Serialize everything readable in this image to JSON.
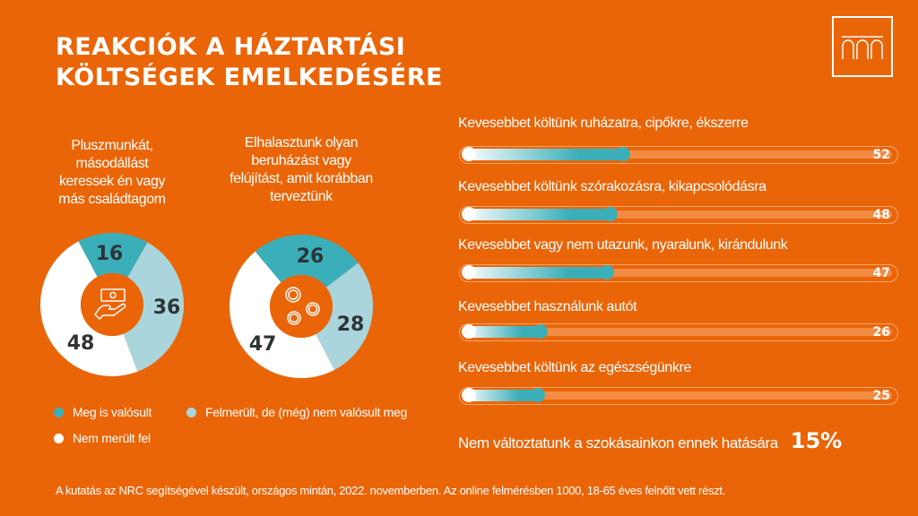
{
  "title_lines": [
    "REAKCIÓK A HÁZTARTÁSI",
    "KÖLTSÉGEK EMELKEDÉSÉRE"
  ],
  "colors": {
    "background": "#EA6508",
    "teal": "#3AAFBA",
    "light_blue": "#AAD5DC",
    "white": "#FFFFFF"
  },
  "chart_data": [
    {
      "type": "pie",
      "title_lines": [
        "Pluszmunkát,",
        "másodállást",
        "keressek én vagy",
        "más családtagom"
      ],
      "icon": "hand-money-icon",
      "categories": [
        "Meg is valósult",
        "Felmerült, de (még) nem valósult meg",
        "Nem merült fel"
      ],
      "values": [
        16,
        36,
        48
      ]
    },
    {
      "type": "pie",
      "title_lines": [
        "Elhalasztunk olyan",
        "beruházást vagy",
        "felújítást, amit korábban",
        "terveztünk"
      ],
      "icon": "coins-icon",
      "categories": [
        "Meg is valósult",
        "Felmerült, de (még) nem valósult meg",
        "Nem merült fel"
      ],
      "values": [
        26,
        28,
        47
      ]
    },
    {
      "type": "bar",
      "categories": [
        "Kevesebbet költünk ruházatra, cipőkre, ékszerre",
        "Kevesebbet költünk szórakozásra, kikapcsolódásra",
        "Kevesebbet vagy nem utazunk, nyaralunk, kirándulunk",
        "Kevesebbet használunk autót",
        "Kevesebbet költünk az egészségünkre"
      ],
      "values": [
        52,
        48,
        47,
        26,
        25
      ]
    }
  ],
  "legend": [
    {
      "label": "Meg is valósult",
      "color": "#3AAFBA"
    },
    {
      "label": "Felmerült, de (még) nem valósult meg",
      "color": "#AAD5DC"
    },
    {
      "label": "Nem merült fel",
      "color": "#FFFFFF"
    }
  ],
  "no_change": {
    "label": "Nem változtatunk a szokásainkon ennek hatására",
    "value": "15%"
  },
  "footnote": "A kutatás az NRC segítségével készült, országos mintán, 2022. novemberben. Az online felmérésben 1000, 18-65 éves felnőtt vett részt."
}
